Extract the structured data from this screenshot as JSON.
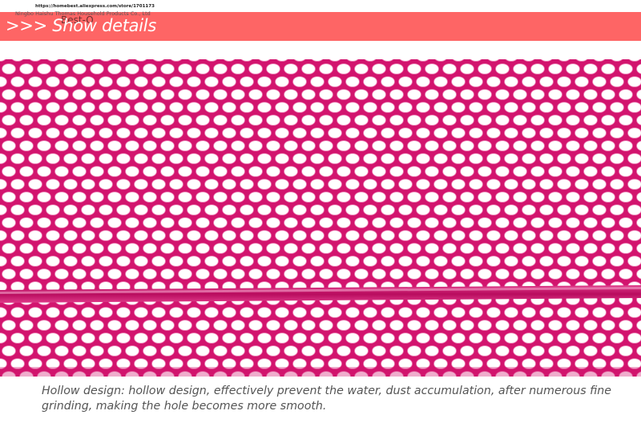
{
  "watermark": {
    "url": "https://homebest.aliexpress.com/store/1701173",
    "company": "Ningbo Haishu Thomas Household Products Co., Ltd"
  },
  "banner": {
    "title": ">>> Show details",
    "brand": "Best-O",
    "background_color": "#fe6565"
  },
  "product_image": {
    "subject": "pink hexagonal mesh detail",
    "mesh_color": "#d2146e"
  },
  "caption": "Hollow design: hollow design, effectively prevent the water, dust accumulation, after numerous fine grinding, making the hole becomes more smooth."
}
